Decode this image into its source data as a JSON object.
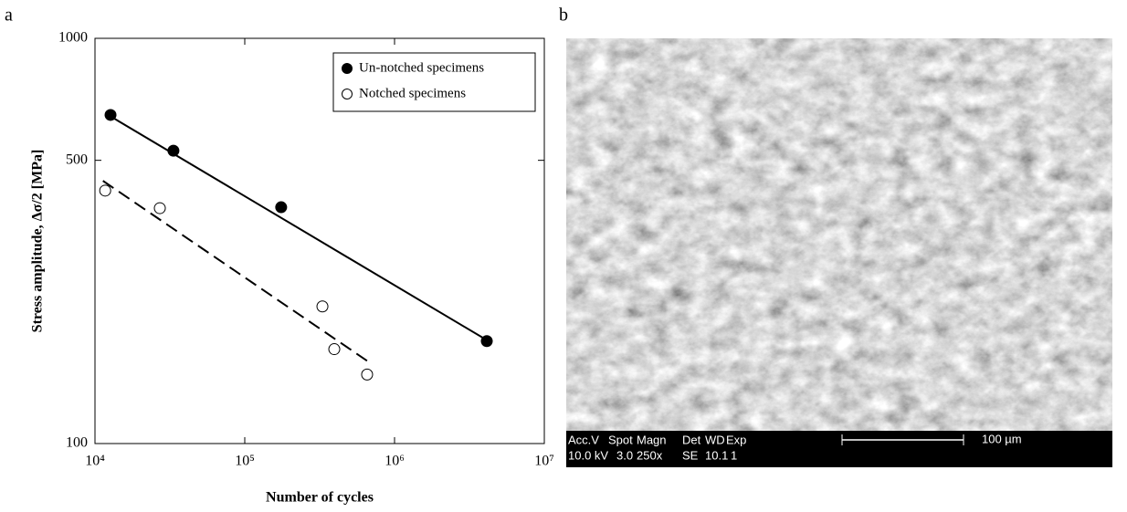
{
  "panel_labels": [
    "a",
    "b"
  ],
  "chart_data": {
    "type": "scatter",
    "xlabel": "Number of cycles",
    "ylabel": "Stress amplitude, Δσ/2 [MPa]",
    "xscale": "log",
    "yscale": "log",
    "xlim": [
      10000,
      10000000
    ],
    "ylim": [
      100,
      1000
    ],
    "xticks": [
      {
        "value": 10000,
        "label": "10⁴"
      },
      {
        "value": 100000,
        "label": "10⁵"
      },
      {
        "value": 1000000,
        "label": "10⁶"
      },
      {
        "value": 10000000,
        "label": "10⁷"
      }
    ],
    "yticks": [
      100,
      500,
      1000
    ],
    "legend": "upper right",
    "series": [
      {
        "name": "Un-notched specimens",
        "marker": "filled",
        "color": "#000000",
        "x": [
          12700,
          33400,
          175000,
          4130000
        ],
        "values": [
          647,
          528,
          383,
          179
        ]
      },
      {
        "name": "Notched specimens",
        "marker": "open",
        "color": "#000000",
        "x": [
          11700,
          27100,
          330000,
          396000,
          656000
        ],
        "values": [
          421,
          381,
          218,
          171,
          148
        ]
      },
      {
        "type": "line",
        "line_style": "solid",
        "color": "#000000",
        "x": [
          12000,
          4130000
        ],
        "values": [
          650,
          180
        ]
      },
      {
        "type": "line",
        "line_style": "dashed",
        "color": "#000000",
        "x": [
          11300,
          656000
        ],
        "values": [
          445,
          160
        ]
      }
    ]
  },
  "sem_image": {
    "info_bar": {
      "headers": [
        "Acc.V",
        "Spot",
        "Magn",
        "Det",
        "WD",
        "Exp"
      ],
      "values": [
        "10.0 kV",
        "3.0",
        "250x",
        "SE",
        "10.1",
        "1"
      ],
      "scale_label": "100 µm"
    }
  }
}
